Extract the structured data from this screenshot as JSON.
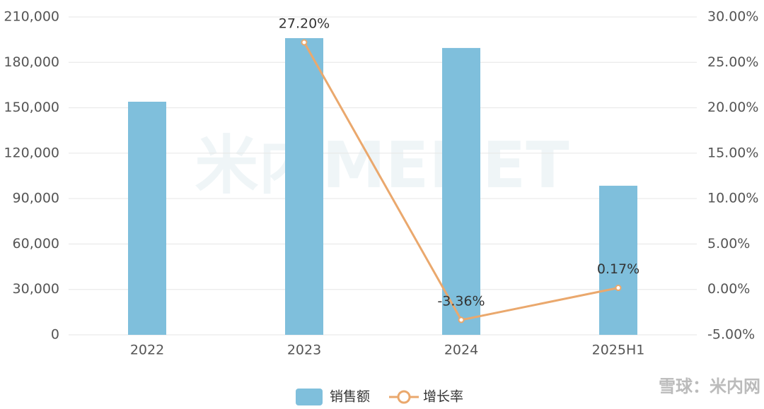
{
  "chart_data": {
    "type": "bar-line",
    "categories": [
      "2022",
      "2023",
      "2024",
      "2025H1"
    ],
    "series": [
      {
        "name": "销售额",
        "type": "bar",
        "color": "#7fbfdc",
        "values": [
          154000,
          196000,
          189500,
          98500
        ]
      },
      {
        "name": "增长率",
        "type": "line",
        "axis": "y2",
        "color": "#eaa86d",
        "values": [
          null,
          27.2,
          -3.36,
          0.17
        ],
        "value_labels": [
          null,
          "27.20%",
          "-3.36%",
          "0.17%"
        ]
      }
    ],
    "ylim": [
      0,
      210000
    ],
    "yticks": [
      0,
      {
        "value": 30000,
        "label": "30,000"
      },
      {
        "value": 60000,
        "label": "60,000"
      },
      {
        "value": 90000,
        "label": "90,000"
      },
      {
        "value": 120000,
        "label": "120,000"
      },
      {
        "value": 150000,
        "label": "150,000"
      },
      {
        "value": 180000,
        "label": "180,000"
      },
      {
        "value": 210000,
        "label": "210,000"
      }
    ],
    "y2lim": [
      -5,
      30
    ],
    "y2ticks": [
      {
        "value": -5,
        "label": "-5.00%"
      },
      {
        "value": 0,
        "label": "0.00%"
      },
      {
        "value": 5,
        "label": "5.00%"
      },
      {
        "value": 10,
        "label": "10.00%"
      },
      {
        "value": 15,
        "label": "15.00%"
      },
      {
        "value": 20,
        "label": "20.00%"
      },
      {
        "value": 25,
        "label": "25.00%"
      },
      {
        "value": 30,
        "label": "30.00%"
      }
    ],
    "grid": true,
    "legend": "bottom",
    "watermark": "米内MENET",
    "source_watermark": "雪球：米内网"
  }
}
